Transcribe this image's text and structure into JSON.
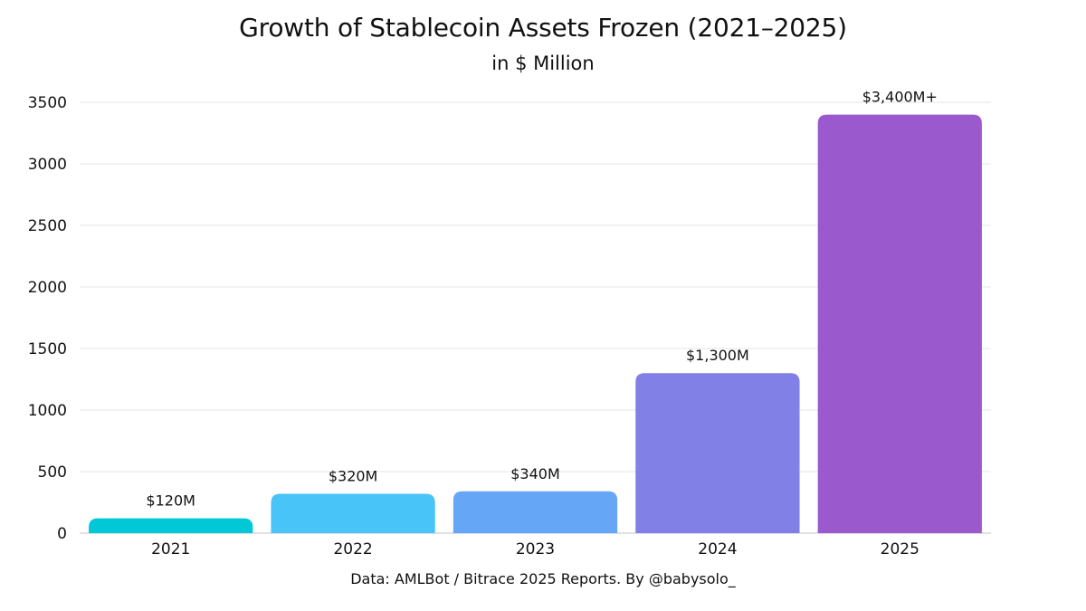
{
  "header": {
    "title": "Growth of Stablecoin Assets Frozen (2021–2025)",
    "subtitle": "in $ Million"
  },
  "footer": {
    "source": "Data: AMLBot / Bitrace 2025 Reports. By @babysolo_"
  },
  "chart_data": {
    "type": "bar",
    "title": "Growth of Stablecoin Assets Frozen (2021–2025)",
    "subtitle": "in $ Million",
    "categories": [
      "2021",
      "2022",
      "2023",
      "2024",
      "2025"
    ],
    "values": [
      120,
      320,
      340,
      1300,
      3400
    ],
    "data_labels": [
      "$120M",
      "$320M",
      "$340M",
      "$1,300M",
      "$3,400M+"
    ],
    "colors": [
      "#00C8D7",
      "#48C4F8",
      "#66A6F6",
      "#8080E6",
      "#9A5ACE"
    ],
    "y_ticks": [
      0,
      500,
      1000,
      1500,
      2000,
      2500,
      3000,
      3500
    ],
    "ylim": [
      0,
      3500
    ],
    "xlabel": "",
    "ylabel": "",
    "grid": true,
    "legend": "none"
  }
}
